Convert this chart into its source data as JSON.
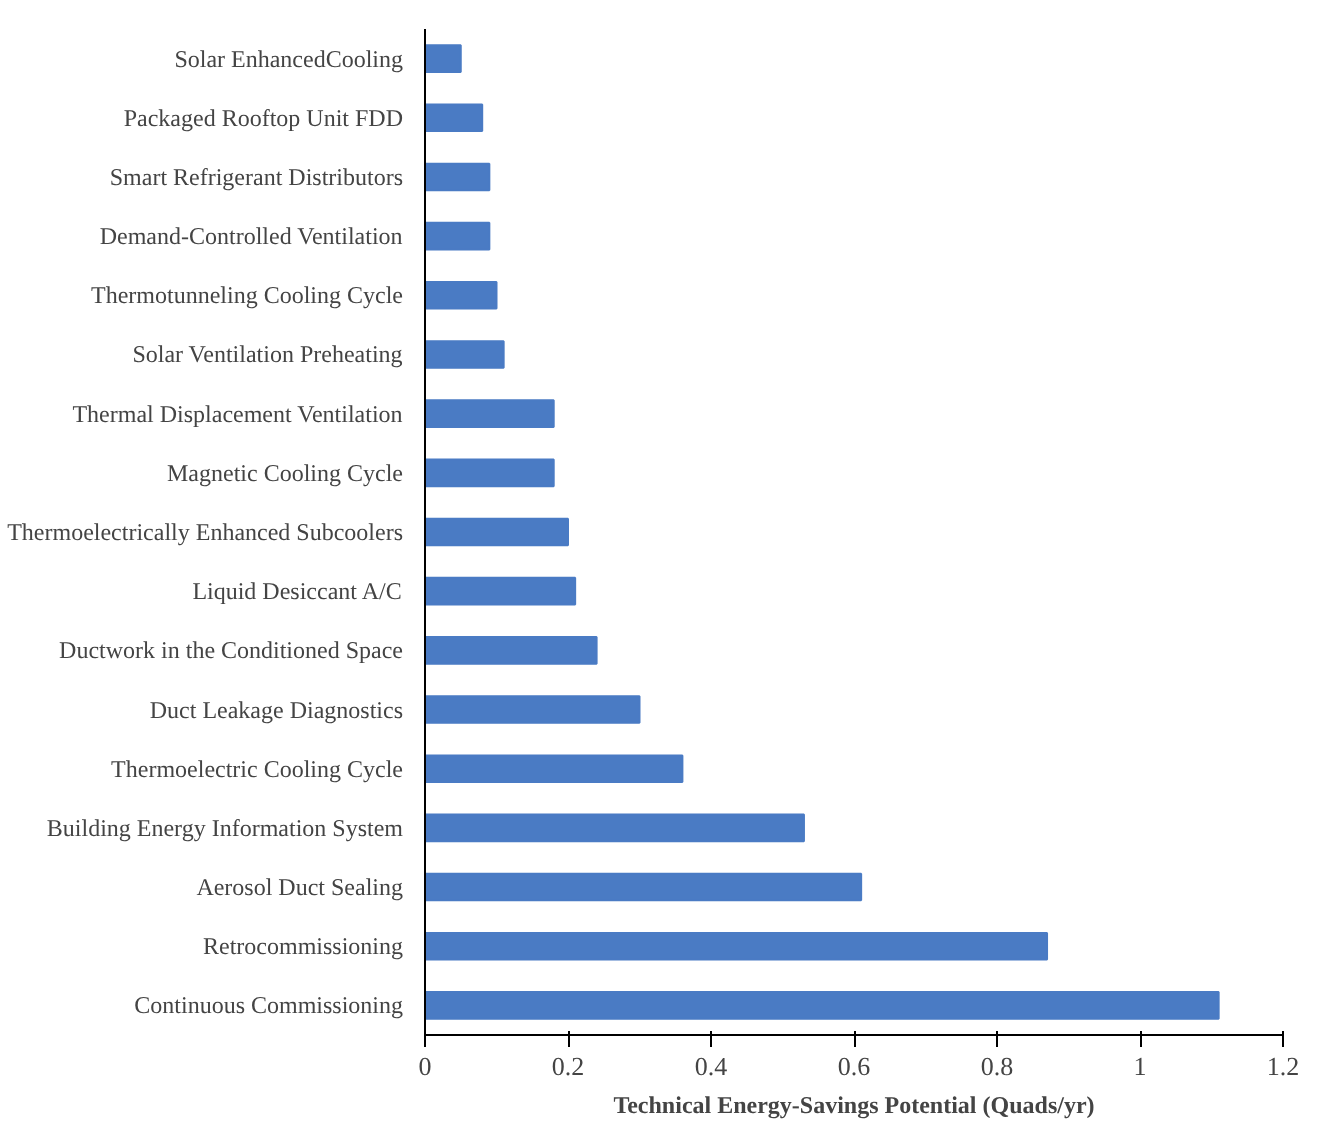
{
  "chart_data": {
    "type": "bar",
    "orientation": "horizontal",
    "xlabel": "Technical Energy-Savings Potential (Quads/yr)",
    "categories": [
      "Solar EnhancedCooling",
      "Packaged Rooftop Unit FDD",
      "Smart Refrigerant Distributors",
      "Demand-Controlled Ventilation",
      "Thermotunneling Cooling Cycle",
      "Solar Ventilation Preheating",
      "Thermal Displacement Ventilation",
      "Magnetic Cooling Cycle",
      "Thermoelectrically Enhanced Subcoolers",
      "Liquid Desiccant A/C",
      "Ductwork in the Conditioned Space",
      "Duct Leakage Diagnostics",
      "Thermoelectric Cooling Cycle",
      "Building Energy Information System",
      "Aerosol Duct Sealing",
      "Retrocommissioning",
      "Continuous Commissioning"
    ],
    "values": [
      0.05,
      0.08,
      0.09,
      0.09,
      0.1,
      0.11,
      0.18,
      0.18,
      0.2,
      0.21,
      0.24,
      0.3,
      0.36,
      0.53,
      0.61,
      0.87,
      1.11
    ],
    "color": "#4a7bc4",
    "xlim": [
      0,
      1.2
    ],
    "xticks": [
      0,
      0.2,
      0.4,
      0.6,
      0.8,
      1,
      1.2
    ],
    "grid": false
  }
}
